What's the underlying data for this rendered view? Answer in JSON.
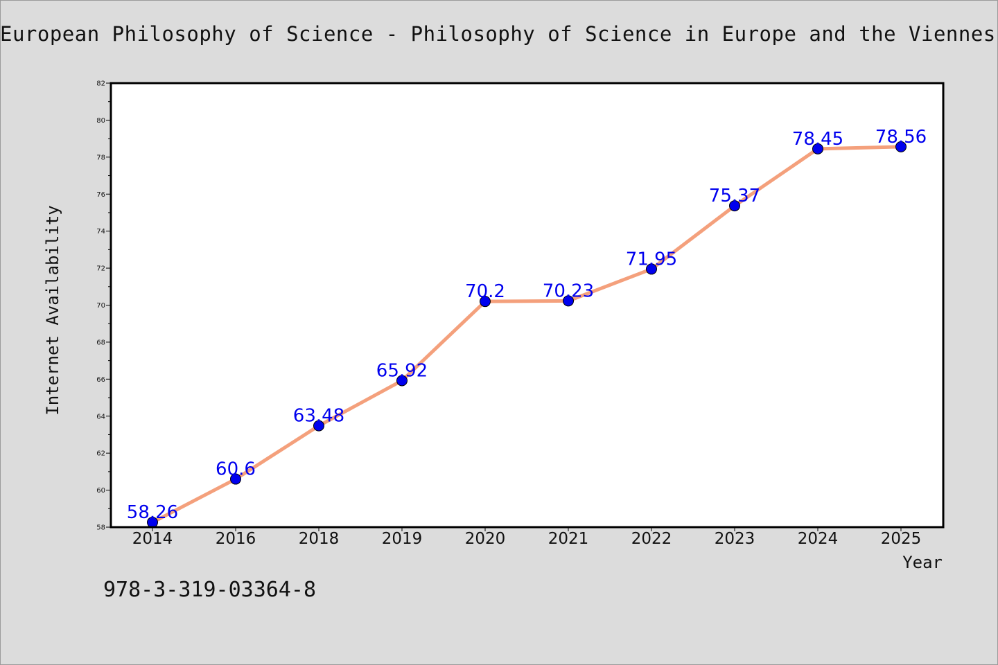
{
  "title": "European Philosophy of Science - Philosophy of Science in Europe and the Viennes",
  "footer_text": "978-3-319-03364-8",
  "chart_data": {
    "type": "line",
    "categories": [
      "2014",
      "2016",
      "2018",
      "2019",
      "2020",
      "2021",
      "2022",
      "2023",
      "2024",
      "2025"
    ],
    "series": [
      {
        "values": [
          58.26,
          60.6,
          63.48,
          65.92,
          70.2,
          70.23,
          71.95,
          75.37,
          78.45,
          78.56
        ],
        "labels": [
          "58.26",
          "60.6",
          "63.48",
          "65.92",
          "70.2",
          "70.23",
          "71.95",
          "75.37",
          "78.45",
          "78.56"
        ],
        "line_color": "#f4a07c",
        "marker_color": "#0000ee",
        "label_color": "#0000ee"
      }
    ],
    "title": "European Philosophy of Science - Philosophy of Science in Europe and the Viennes",
    "xlabel": "Year",
    "ylabel": "Internet Availability",
    "ylim": [
      58,
      82
    ],
    "yticks": [
      "58",
      "60",
      "62",
      "64",
      "66",
      "68",
      "70",
      "72",
      "74",
      "76",
      "78",
      "80",
      "82"
    ],
    "grid": false,
    "background_color": "#dcdcdc",
    "plot_background": "#ffffff"
  }
}
